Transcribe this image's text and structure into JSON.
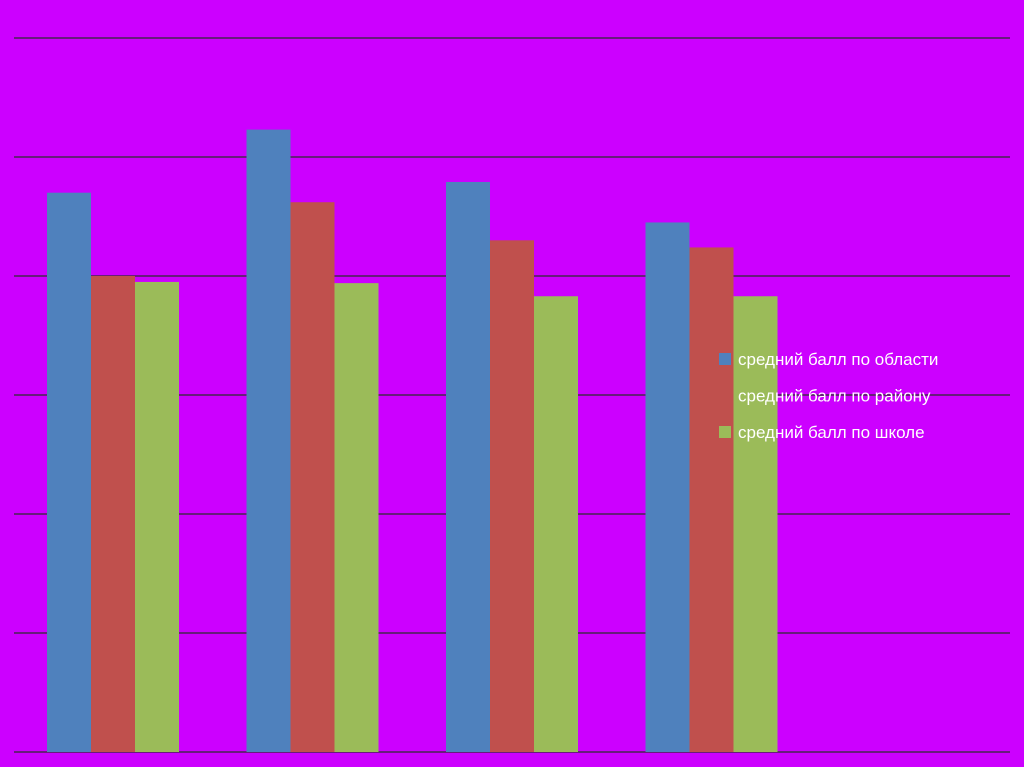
{
  "chart_data": {
    "type": "bar",
    "categories": [
      "",
      "",
      "",
      ""
    ],
    "series": [
      {
        "name": "средний балл по области",
        "color": "#4f81bd",
        "values": [
          4.7,
          5.23,
          4.79,
          4.45
        ]
      },
      {
        "name": "средний балл по району",
        "color": "#c0504d",
        "values": [
          4.0,
          4.62,
          4.3,
          4.24
        ]
      },
      {
        "name": "средний балл по школе",
        "color": "#9bbb59",
        "values": [
          3.95,
          3.94,
          3.83,
          3.83
        ]
      }
    ],
    "ylim": [
      0,
      6
    ],
    "grid": true,
    "axis_labels_visible": false,
    "legend_position": "right",
    "background_color": "#cc00ff",
    "gridline_color": "#2d2d2d"
  }
}
